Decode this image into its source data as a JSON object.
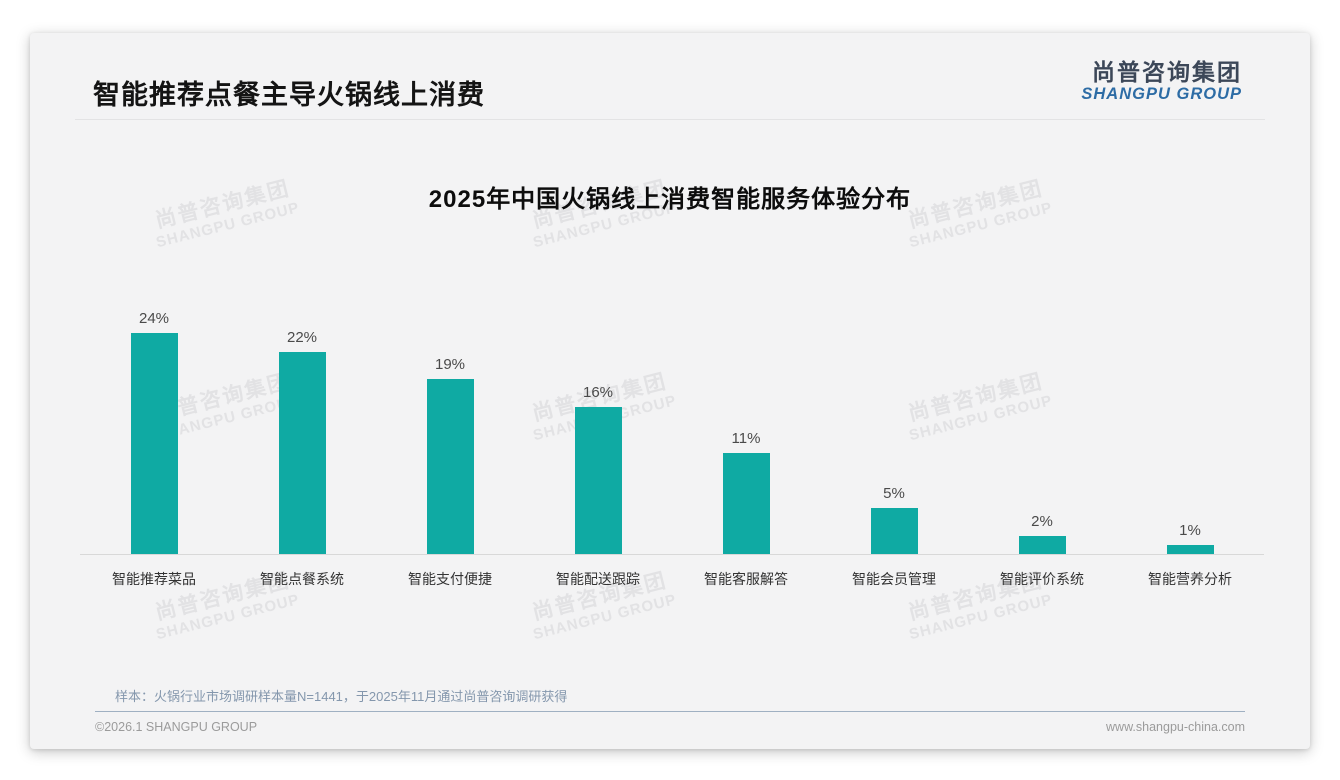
{
  "page": {
    "title": "智能推荐点餐主导火锅线上消费",
    "logo": {
      "cn": "尚普咨询集团",
      "en": "SHANGPU GROUP"
    },
    "watermark": {
      "line1": "尚普咨询集团",
      "line2": "SHANGPU GROUP"
    },
    "note": "样本：火锅行业市场调研样本量N=1441，于2025年11月通过尚普咨询调研获得",
    "footer": {
      "left": "©2026.1 SHANGPU GROUP",
      "right": "www.shangpu-china.com"
    }
  },
  "colors": {
    "bar_teal": "#0faaa3",
    "logo_blue": "#2d6ca5",
    "logo_dark": "#3c4758",
    "note_blue_gray": "#8497ad"
  },
  "chart_data": {
    "type": "bar",
    "title": "2025年中国火锅线上消费智能服务体验分布",
    "categories": [
      "智能推荐菜品",
      "智能点餐系统",
      "智能支付便捷",
      "智能配送跟踪",
      "智能客服解答",
      "智能会员管理",
      "智能评价系统",
      "智能营养分析"
    ],
    "values": [
      24,
      22,
      19,
      16,
      11,
      5,
      2,
      1
    ],
    "value_labels": [
      "24%",
      "22%",
      "19%",
      "16%",
      "11%",
      "5%",
      "2%",
      "1%"
    ],
    "unit": "%",
    "xlabel": "",
    "ylabel": "",
    "ylim": [
      0,
      25
    ],
    "grid": false,
    "legend": "none",
    "bar_color": "#0faaa3"
  }
}
